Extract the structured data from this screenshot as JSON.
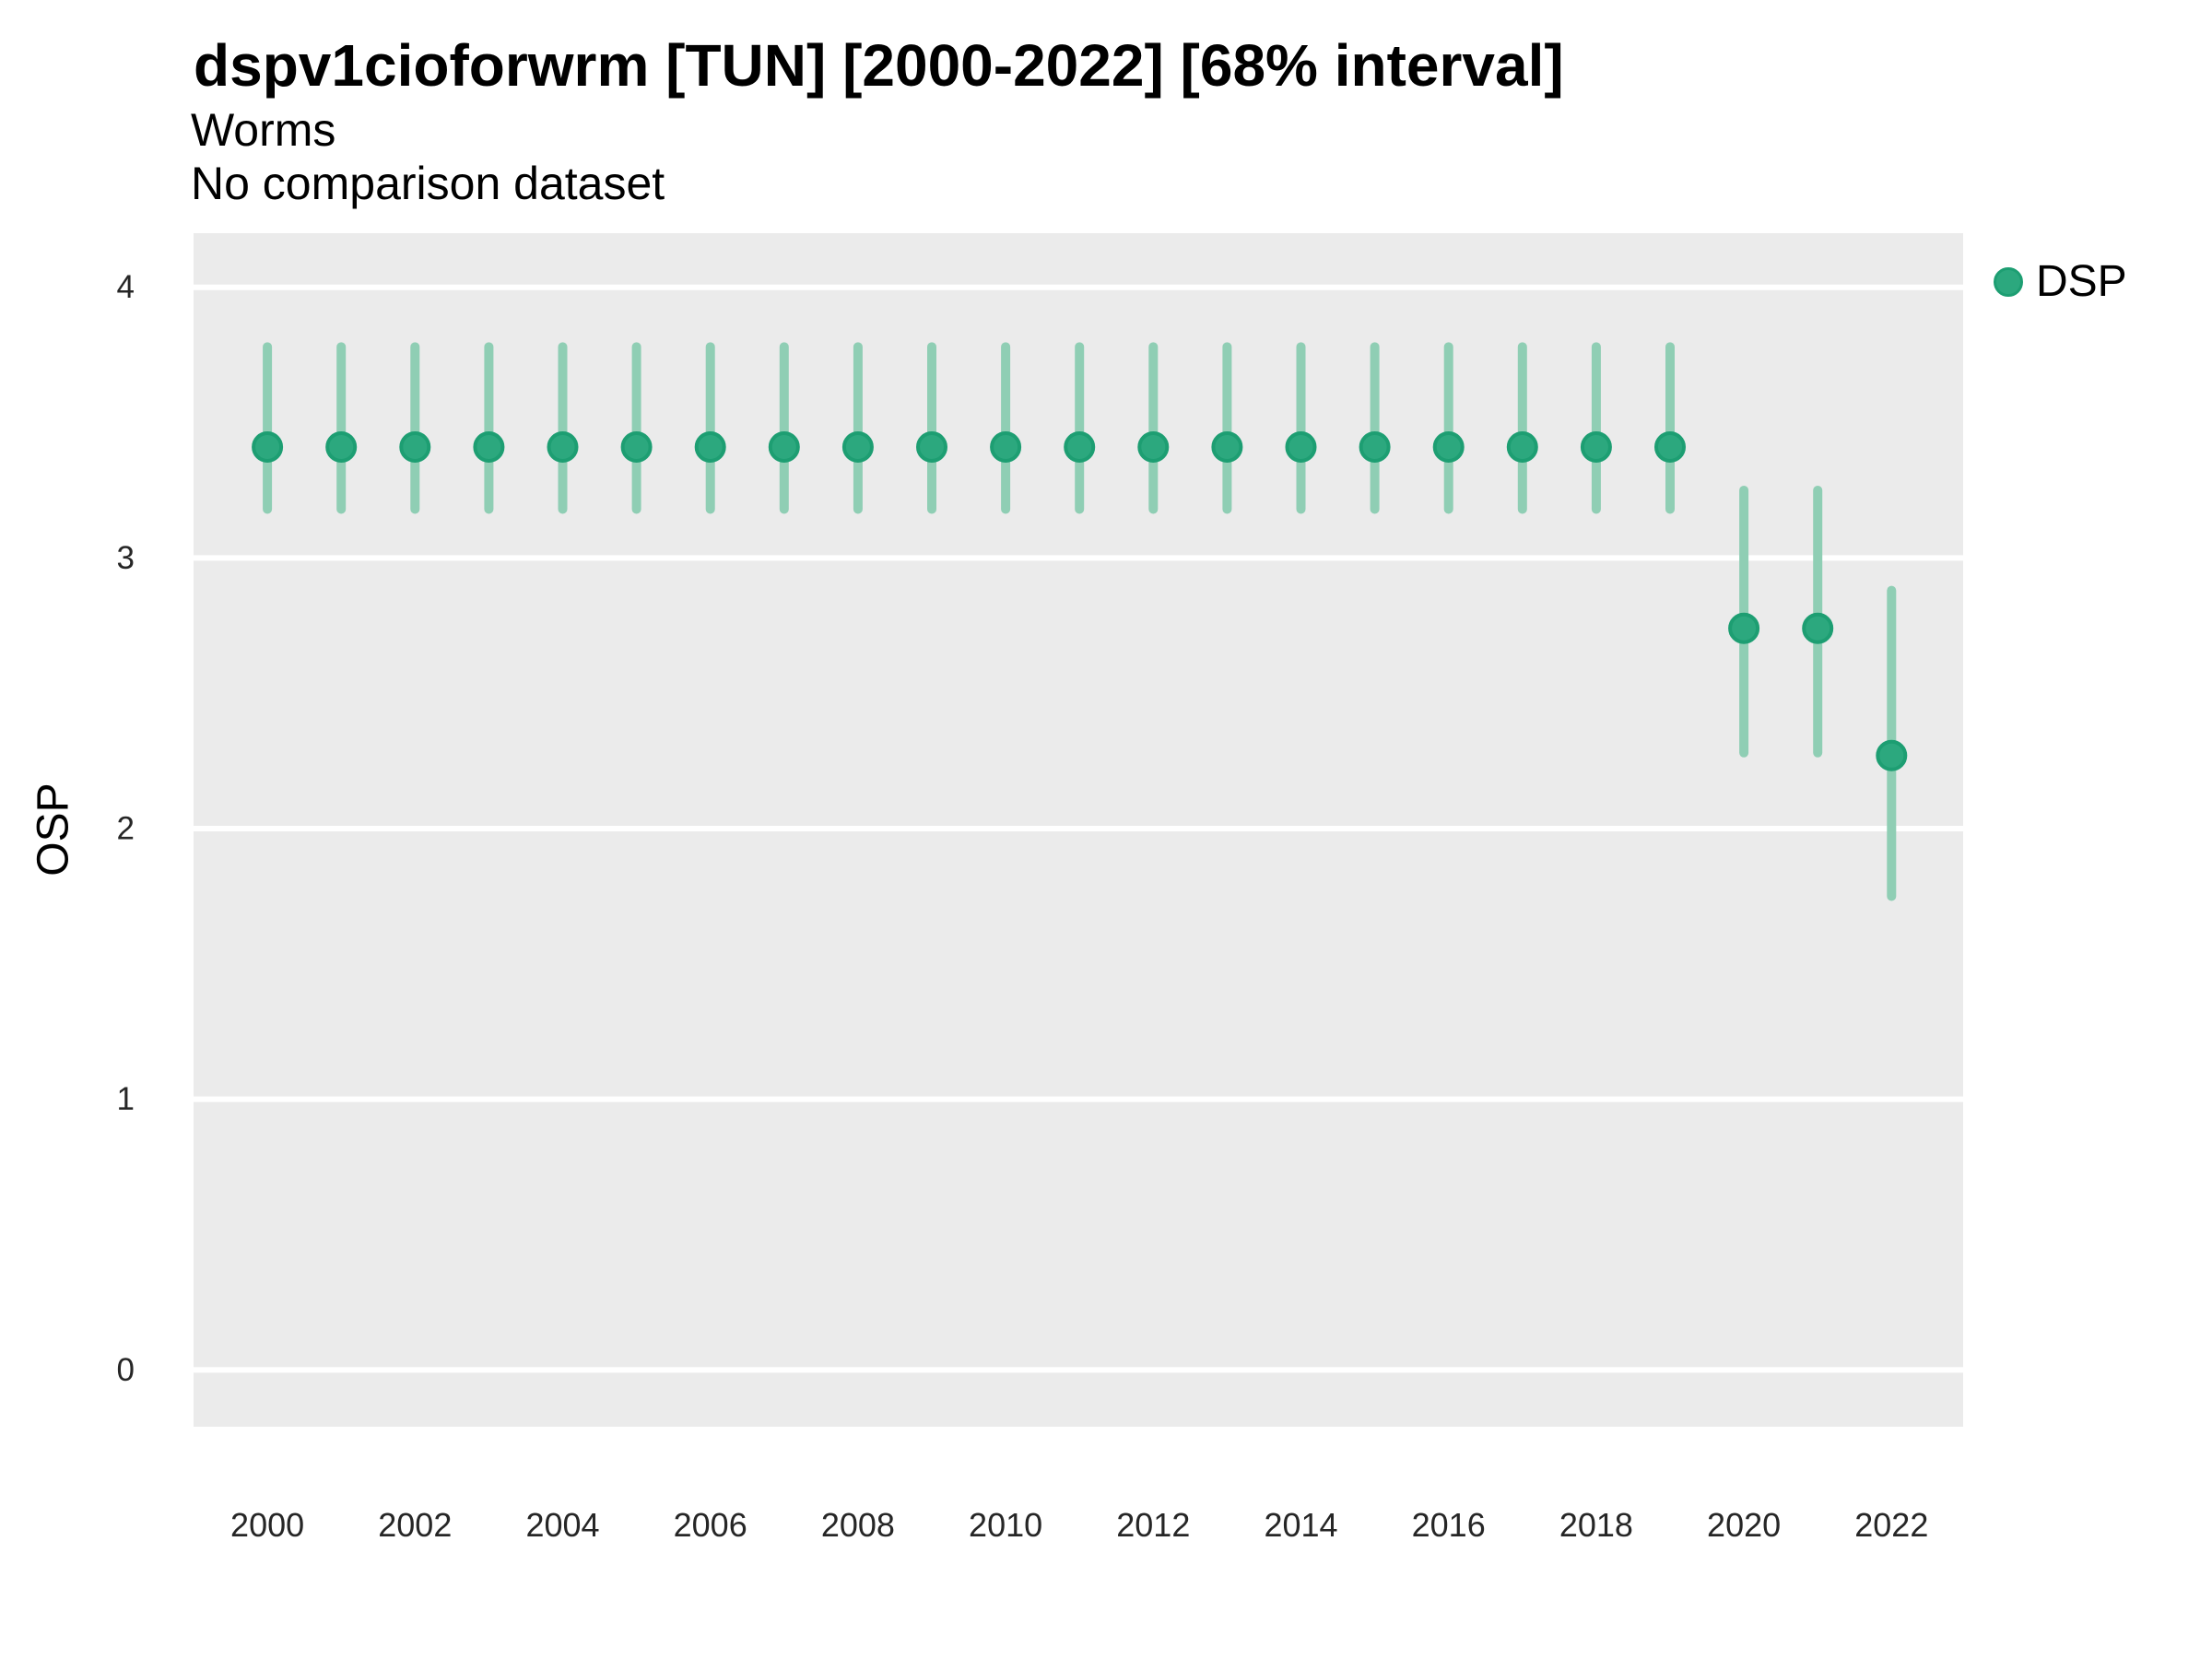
{
  "header": {
    "title": "dspv1cioforwrm [TUN] [2000-2022] [68% interval]",
    "subtitle": "Worms",
    "comparison_note": "No comparison dataset"
  },
  "legend": {
    "items": [
      {
        "label": "DSP",
        "color": "#2CA87E"
      }
    ]
  },
  "chart_data": {
    "type": "scatter",
    "subtype": "pointrange",
    "title": "dspv1cioforwrm [TUN] [2000-2022] [68% interval]",
    "subtitle": "Worms",
    "note": "No comparison dataset",
    "interval_label": "68% interval",
    "xlabel": "",
    "ylabel": "OSP",
    "x_ticks": [
      2000,
      2002,
      2004,
      2006,
      2008,
      2010,
      2012,
      2014,
      2016,
      2018,
      2020,
      2022
    ],
    "y_ticks": [
      0,
      1,
      2,
      3,
      4
    ],
    "xlim": [
      1999.0,
      2022.97
    ],
    "ylim": [
      -0.21,
      4.2
    ],
    "grid": "horizontal-major-only",
    "legend_position": "right",
    "series": [
      {
        "name": "DSP",
        "x": [
          2000,
          2001,
          2002,
          2003,
          2004,
          2005,
          2006,
          2007,
          2008,
          2009,
          2010,
          2011,
          2012,
          2013,
          2014,
          2015,
          2016,
          2017,
          2018,
          2019,
          2020,
          2021,
          2022
        ],
        "est": [
          3.41,
          3.41,
          3.41,
          3.41,
          3.41,
          3.41,
          3.41,
          3.41,
          3.41,
          3.41,
          3.41,
          3.41,
          3.41,
          3.41,
          3.41,
          3.41,
          3.41,
          3.41,
          3.41,
          3.41,
          2.74,
          2.74,
          2.27
        ],
        "lo": [
          3.18,
          3.18,
          3.18,
          3.18,
          3.18,
          3.18,
          3.18,
          3.18,
          3.18,
          3.18,
          3.18,
          3.18,
          3.18,
          3.18,
          3.18,
          3.18,
          3.18,
          3.18,
          3.18,
          3.18,
          2.28,
          2.28,
          1.75
        ],
        "hi": [
          3.78,
          3.78,
          3.78,
          3.78,
          3.78,
          3.78,
          3.78,
          3.78,
          3.78,
          3.78,
          3.78,
          3.78,
          3.78,
          3.78,
          3.78,
          3.78,
          3.78,
          3.78,
          3.78,
          3.78,
          3.25,
          3.25,
          2.88
        ]
      }
    ],
    "colors": {
      "point": "#2CA87E",
      "point_stroke": "#1D9E72",
      "interval": "#8FCEB4",
      "panel_bg": "#EBEBEB",
      "grid_line": "#FFFFFF",
      "tick_text": "#262626",
      "text": "#000000"
    }
  }
}
